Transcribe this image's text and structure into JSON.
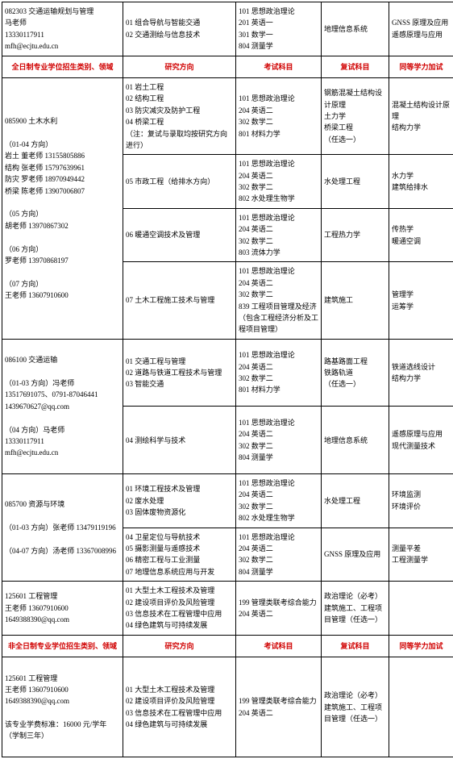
{
  "rows": [
    {
      "type": "data",
      "cells": [
        {
          "lines": [
            "082303 交通运输规划与管理",
            "马老师",
            "13330117911",
            "mfh@ecjtu.edu.cn"
          ]
        },
        {
          "lines": [
            "01 组合导航与智能交通",
            "02 交通测绘与信息技术"
          ]
        },
        {
          "lines": [
            "101 思想政治理论",
            "201 英语一",
            "301 数学一",
            "804 测量学"
          ]
        },
        {
          "lines": [
            "地理信息系统"
          ]
        },
        {
          "lines": [
            "GNSS 原理及应用",
            "遥感原理与应用"
          ]
        }
      ]
    },
    {
      "type": "header",
      "cells": [
        {
          "lines": [
            "全日制专业学位招生类别、领域"
          ]
        },
        {
          "lines": [
            "研究方向"
          ]
        },
        {
          "lines": [
            "考试科目"
          ]
        },
        {
          "lines": [
            "复试科目"
          ]
        },
        {
          "lines": [
            "同等学力加试"
          ]
        }
      ]
    },
    {
      "type": "data",
      "cells": [
        {
          "rowspan": 4,
          "lines": [
            "",
            "085900 土木水利",
            "",
            "（01-04 方向）",
            "岩土  董老师 13155805886",
            "结构  张老师 15797639961",
            "防灾  罗老师 18970949442",
            "桥梁  陈老师 13907006807",
            "",
            "（05 方向）",
            "胡老师 13970867302",
            "",
            "（06 方向）",
            "罗老师 13970868197",
            "",
            "（07 方向）",
            "王老师 13607910600",
            ""
          ]
        },
        {
          "lines": [
            "01 岩土工程",
            "02 结构工程",
            "03 防灾减灾及防护工程",
            "04 桥梁工程",
            "（注：复试与录取均按研究方向进行）"
          ]
        },
        {
          "lines": [
            "101 思想政治理论",
            "204 英语二",
            "302 数学二",
            "801 材料力学"
          ]
        },
        {
          "lines": [
            "钢筋混凝土结构设计原理",
            "土力学",
            "桥梁工程",
            "（任选一）"
          ]
        },
        {
          "lines": [
            "混凝土结构设计原理",
            "结构力学"
          ]
        }
      ]
    },
    {
      "type": "data",
      "cells": [
        {
          "lines": [
            "05 市政工程（给排水方向）"
          ]
        },
        {
          "lines": [
            "101 思想政治理论",
            "204 英语二",
            "302 数学二",
            "802 水处理生物学"
          ]
        },
        {
          "lines": [
            "水处理工程"
          ]
        },
        {
          "lines": [
            "水力学",
            "建筑给排水"
          ]
        }
      ]
    },
    {
      "type": "data",
      "cells": [
        {
          "lines": [
            "06 暖通空调技术及管理"
          ]
        },
        {
          "lines": [
            "101 思想政治理论",
            "204 英语二",
            "302 数学二",
            "803 流体力学"
          ]
        },
        {
          "lines": [
            "工程热力学"
          ]
        },
        {
          "lines": [
            "传热学",
            "暖通空调"
          ]
        }
      ]
    },
    {
      "type": "data",
      "cells": [
        {
          "lines": [
            "07 土木工程施工技术与管理"
          ]
        },
        {
          "lines": [
            "101 思想政治理论",
            "204 英语二",
            "302 数学二",
            "839 工程项目管理及经济（包含工程经济分析及工程项目管理）"
          ]
        },
        {
          "lines": [
            "建筑施工"
          ]
        },
        {
          "lines": [
            "管理学",
            "运筹学"
          ]
        }
      ]
    },
    {
      "type": "data",
      "cells": [
        {
          "rowspan": 2,
          "lines": [
            "",
            "086100 交通运输",
            "",
            "（01-03 方向）冯老师",
            "13517691075、0791-87046441",
            "1439670627@qq.com",
            "",
            "（04 方向）马老师",
            "13330117911",
            "mfh@ecjtu.edu.cn",
            ""
          ]
        },
        {
          "lines": [
            "01 交通工程与管理",
            "02 道路与铁道工程技术与管理",
            "03 智能交通"
          ]
        },
        {
          "lines": [
            "101 思想政治理论",
            "204 英语二",
            "302 数学二",
            "801 材料力学"
          ]
        },
        {
          "lines": [
            "路基路面工程",
            "铁路轨道",
            "（任选一）"
          ]
        },
        {
          "lines": [
            "铁道选线设计",
            "结构力学"
          ]
        }
      ]
    },
    {
      "type": "data",
      "cells": [
        {
          "lines": [
            "04 测绘科学与技术"
          ]
        },
        {
          "lines": [
            "101 思想政治理论",
            "204 英语二",
            "302 数学二",
            "804 测量学"
          ]
        },
        {
          "lines": [
            "地理信息系统"
          ]
        },
        {
          "lines": [
            "遥感原理与应用",
            "现代测量技术"
          ]
        }
      ]
    },
    {
      "type": "data",
      "cells": [
        {
          "rowspan": 2,
          "lines": [
            "",
            "085700 资源与环境",
            "",
            "（01-03 方向）张老师 13479119196",
            "",
            "（04-07 方向）汤老师 13367008996",
            ""
          ]
        },
        {
          "lines": [
            "01 环境工程技术及管理",
            "02 废水处理",
            "03 固体废物资源化"
          ]
        },
        {
          "lines": [
            "101 思想政治理论",
            "204 英语二",
            "302 数学二",
            "802 水处理生物学"
          ]
        },
        {
          "lines": [
            "水处理工程"
          ]
        },
        {
          "lines": [
            "环境监测",
            "环境评价"
          ]
        }
      ]
    },
    {
      "type": "data",
      "cells": [
        {
          "lines": [
            "04 卫星定位与导航技术",
            "05 摄影测量与遥感技术",
            "06 精密工程与工业测量",
            "07 地理信息系统应用与开发"
          ]
        },
        {
          "lines": [
            "101 思想政治理论",
            "204 英语二",
            "302 数学二",
            "804 测量学"
          ]
        },
        {
          "lines": [
            "GNSS 原理及应用"
          ]
        },
        {
          "lines": [
            "测量平差",
            "工程测量学"
          ]
        }
      ]
    },
    {
      "type": "data",
      "cells": [
        {
          "lines": [
            "125601 工程管理",
            "王老师 13607910600",
            "1649388390@qq.com"
          ]
        },
        {
          "lines": [
            "01 大型土木工程技术及管理",
            "02 建设项目评价及风险管理",
            "03 信息技术在工程管理中应用",
            "04 绿色建筑与可持续发展"
          ]
        },
        {
          "lines": [
            "199 管理类联考综合能力",
            "204 英语二"
          ]
        },
        {
          "lines": [
            "政治理论（必考）",
            "建筑施工、工程项目管理（任选一）"
          ]
        },
        {
          "lines": [
            ""
          ]
        }
      ]
    },
    {
      "type": "header",
      "cells": [
        {
          "lines": [
            "非全日制专业学位招生类别、领域"
          ]
        },
        {
          "lines": [
            "研究方向"
          ]
        },
        {
          "lines": [
            "考试科目"
          ]
        },
        {
          "lines": [
            "复试科目"
          ]
        },
        {
          "lines": [
            "同等学力加试"
          ]
        }
      ]
    },
    {
      "type": "data",
      "cells": [
        {
          "lines": [
            "",
            "125601 工程管理",
            "王老师 13607910600",
            "1649388390@qq.com",
            "",
            "该专业学费标准：16000 元/学年（学制三年）",
            ""
          ]
        },
        {
          "lines": [
            "01 大型土木工程技术及管理",
            "02 建设项目评价及风险管理",
            "03 信息技术在工程管理中应用",
            "04 绿色建筑与可持续发展"
          ]
        },
        {
          "lines": [
            "199 管理类联考综合能力",
            "204 英语二"
          ]
        },
        {
          "lines": [
            "政治理论（必考）",
            "建筑施工、工程项目管理（任选一）"
          ]
        },
        {
          "lines": [
            ""
          ]
        }
      ]
    }
  ]
}
